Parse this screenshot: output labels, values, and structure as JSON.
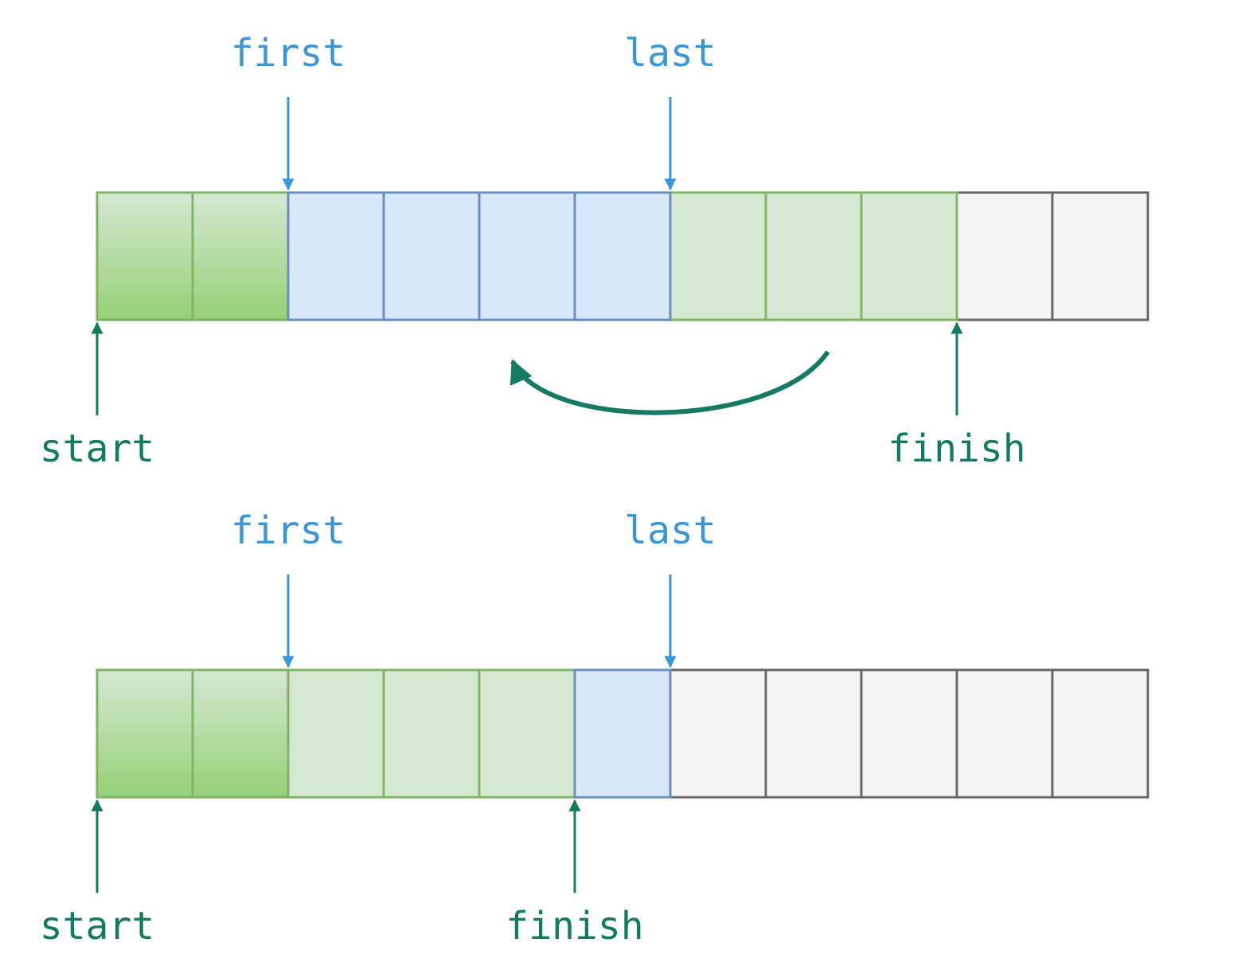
{
  "colors": {
    "pointer_blue": "#3b96d6",
    "pointer_green": "#147a63",
    "green_border": "#82b366",
    "green_fill_light": "#d5e8d4",
    "green_grad_top": "#d5e8d4",
    "green_grad_bottom": "#97d077",
    "blue_border": "#6c8ebf",
    "blue_fill": "#dae8fc",
    "gray_border": "#666666",
    "gray_fill": "#f5f5f5"
  },
  "diagrams": [
    {
      "cells": [
        "gradient",
        "gradient",
        "blue",
        "blue",
        "blue",
        "blue",
        "green",
        "green",
        "green",
        "gray",
        "gray"
      ],
      "pointers_top": [
        {
          "label": "first",
          "index": 2
        },
        {
          "label": "last",
          "index": 6
        }
      ],
      "pointers_bottom": [
        {
          "label": "start",
          "index": 0
        },
        {
          "label": "finish",
          "index": 9
        }
      ],
      "curved_arrow": {
        "icon": "curved-left-arrow-icon",
        "from_index": 7,
        "to_index": 4
      }
    },
    {
      "cells": [
        "gradient",
        "gradient",
        "green",
        "green",
        "green",
        "blue",
        "gray",
        "gray",
        "gray",
        "gray",
        "gray"
      ],
      "pointers_top": [
        {
          "label": "first",
          "index": 2
        },
        {
          "label": "last",
          "index": 6
        }
      ],
      "pointers_bottom": [
        {
          "label": "start",
          "index": 0
        },
        {
          "label": "finish",
          "index": 5
        }
      ]
    }
  ]
}
